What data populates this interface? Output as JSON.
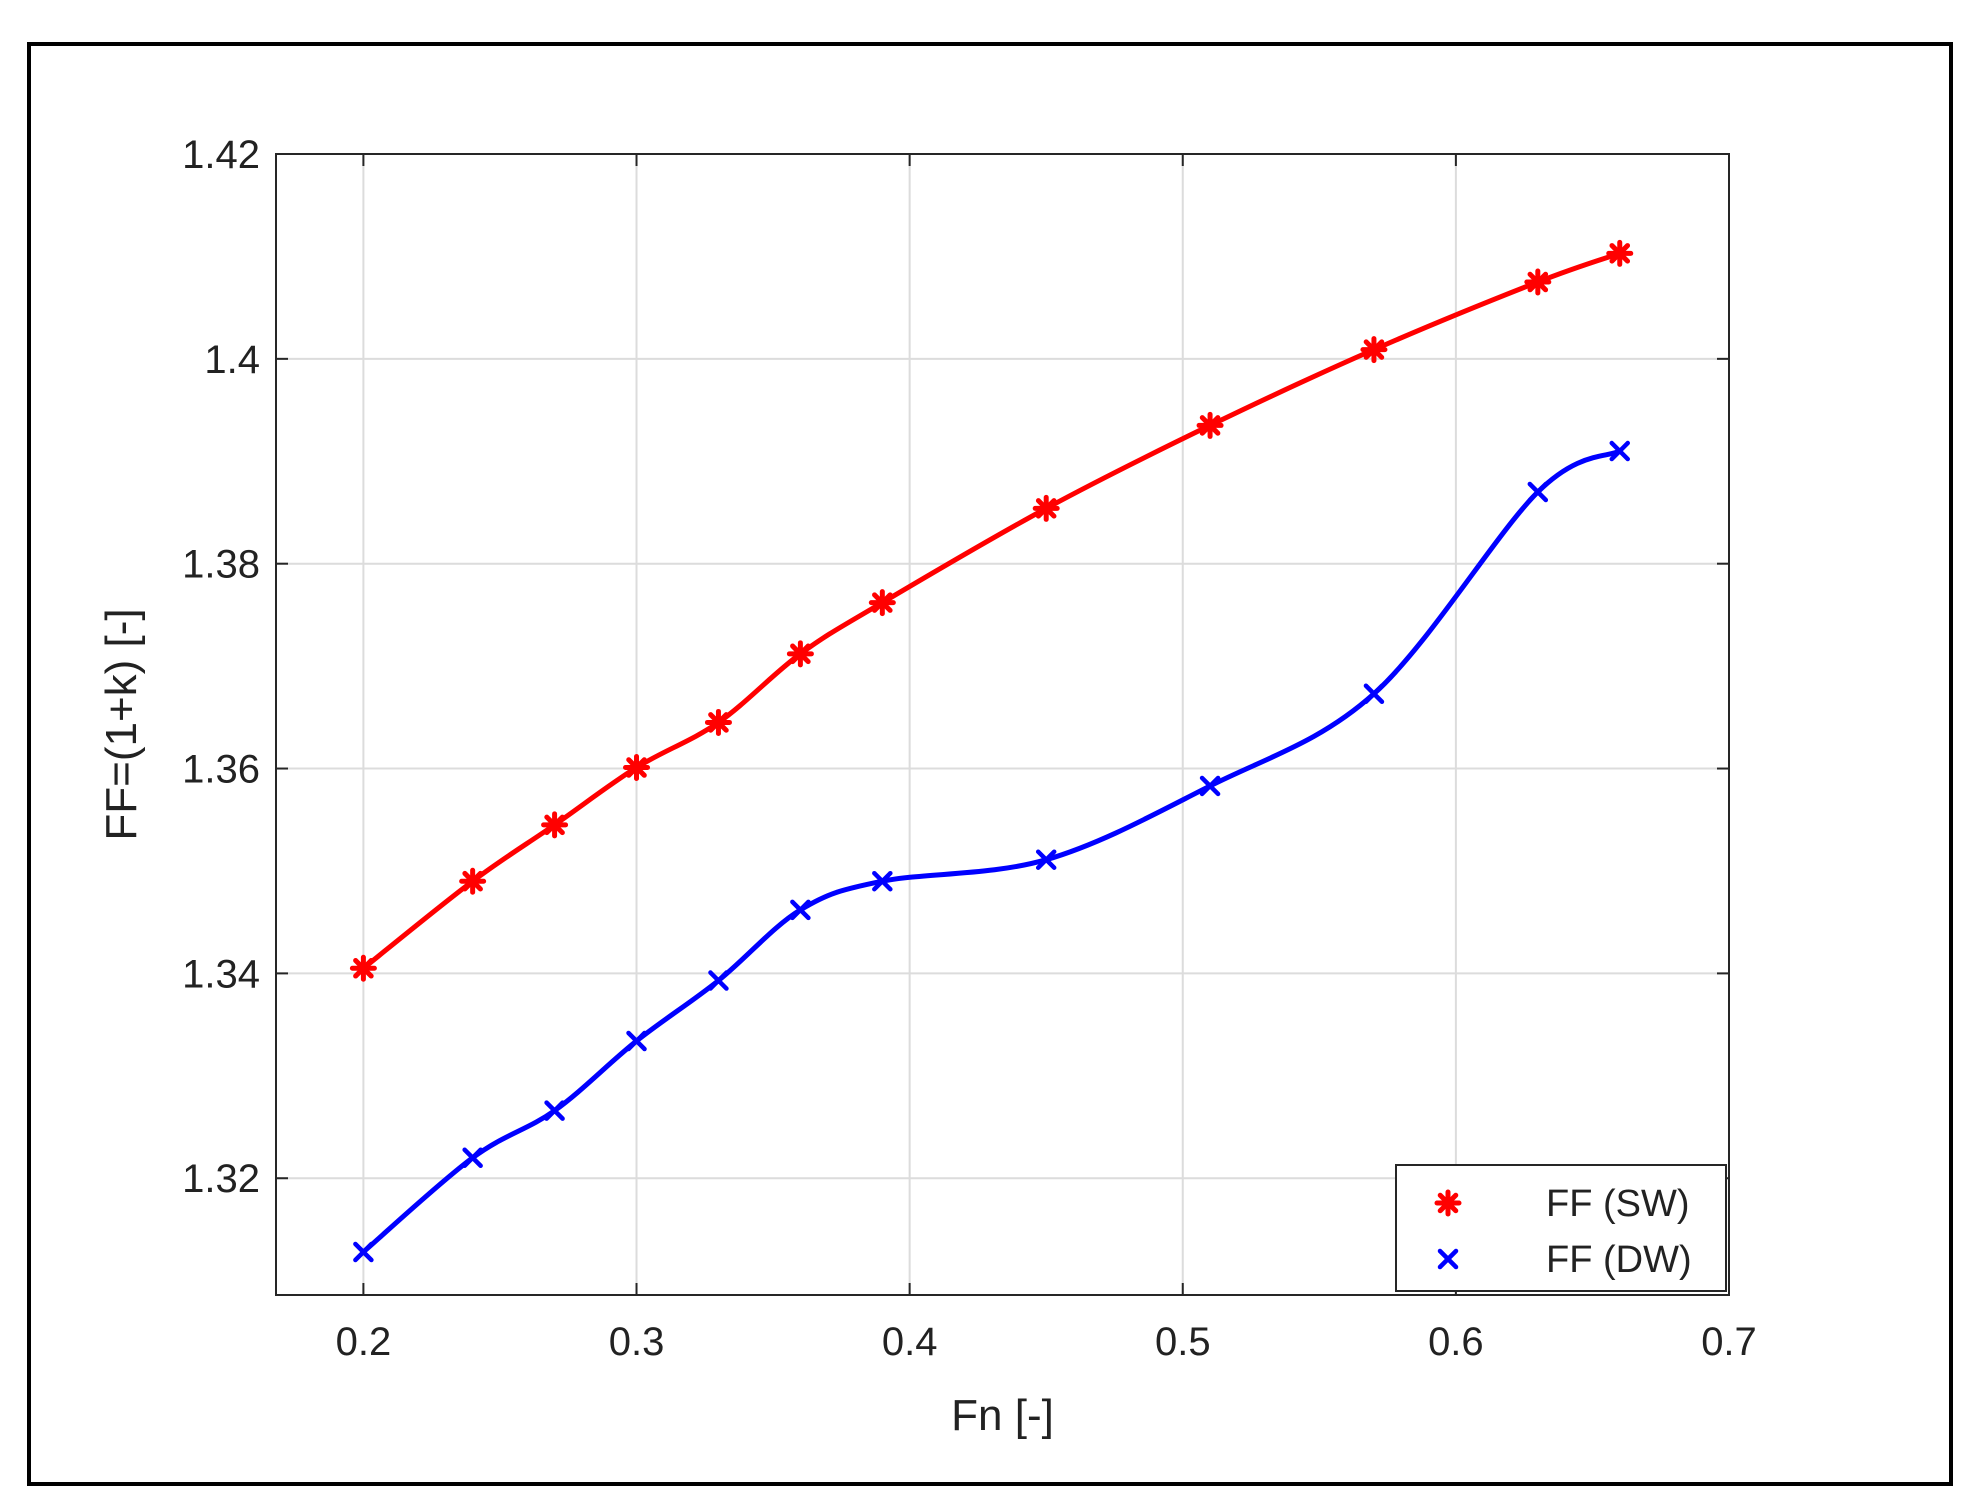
{
  "chart_data": {
    "type": "line",
    "title": "",
    "xlabel": "Fn [-]",
    "ylabel": "FF=(1+k) [-]",
    "xlim": [
      0.168,
      0.7
    ],
    "ylim": [
      1.3086,
      1.42
    ],
    "xticks": [
      0.2,
      0.3,
      0.4,
      0.5,
      0.6,
      0.7
    ],
    "xtick_labels": [
      "0.2",
      "0.3",
      "0.4",
      "0.5",
      "0.6",
      "0.7"
    ],
    "yticks": [
      1.32,
      1.34,
      1.36,
      1.38,
      1.4,
      1.42
    ],
    "ytick_labels": [
      "1.32",
      "1.34",
      "1.36",
      "1.38",
      "1.4",
      "1.42"
    ],
    "grid": true,
    "legend_position": "bottom-right",
    "series": [
      {
        "name": "FF (SW)",
        "color": "#ff0000",
        "marker": "asterisk",
        "x": [
          0.2,
          0.24,
          0.27,
          0.3,
          0.33,
          0.36,
          0.39,
          0.45,
          0.51,
          0.57,
          0.63,
          0.66
        ],
        "y": [
          1.3405,
          1.349,
          1.3545,
          1.3601,
          1.3645,
          1.3712,
          1.3762,
          1.3854,
          1.3935,
          1.4009,
          1.4075,
          1.4103
        ]
      },
      {
        "name": "FF (DW)",
        "color": "#0000ff",
        "marker": "x",
        "x": [
          0.2,
          0.24,
          0.27,
          0.3,
          0.33,
          0.36,
          0.39,
          0.45,
          0.51,
          0.57,
          0.63,
          0.66
        ],
        "y": [
          1.3128,
          1.322,
          1.3266,
          1.3334,
          1.3393,
          1.3462,
          1.349,
          1.3511,
          1.3583,
          1.3673,
          1.387,
          1.391
        ]
      }
    ]
  }
}
